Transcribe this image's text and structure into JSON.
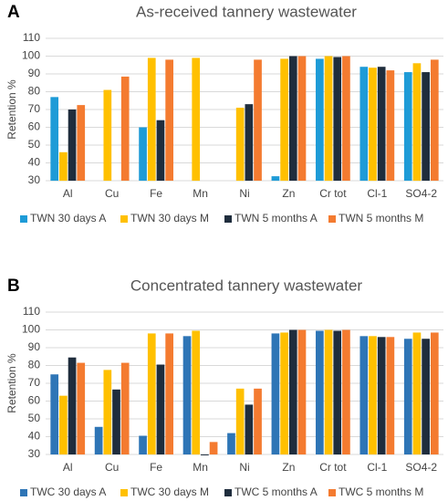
{
  "chart_data": [
    {
      "type": "bar",
      "label": "A",
      "title": "As-received tannery wastewater",
      "y_label": "Retention %",
      "categories": [
        "Al",
        "Cu",
        "Fe",
        "Mn",
        "Ni",
        "Zn",
        "Cr tot",
        "Cl-1",
        "SO4-2"
      ],
      "series": [
        {
          "name": "TWN 30 days A",
          "color": "#1e9bd7",
          "values": [
            77,
            null,
            60,
            null,
            null,
            32.5,
            98.5,
            94,
            91
          ]
        },
        {
          "name": "TWN 30 days M",
          "color": "#ffc000",
          "values": [
            46,
            81,
            99,
            99,
            71,
            98.5,
            100,
            93.5,
            96
          ]
        },
        {
          "name": "TWN 5 months A",
          "color": "#1f2d3d",
          "values": [
            70,
            null,
            64,
            null,
            73,
            100,
            99.5,
            94,
            91
          ]
        },
        {
          "name": "TWN 5 months M",
          "color": "#f47b30",
          "values": [
            72.5,
            88.5,
            98,
            null,
            98,
            100,
            100,
            92,
            98
          ]
        }
      ],
      "ylim": [
        30,
        110
      ],
      "yticks": [
        30,
        40,
        50,
        60,
        70,
        80,
        90,
        100,
        110
      ],
      "grid": true
    },
    {
      "type": "bar",
      "label": "B",
      "title": "Concentrated tannery wastewater",
      "y_label": "Retention %",
      "categories": [
        "Al",
        "Cu",
        "Fe",
        "Mn",
        "Ni",
        "Zn",
        "Cr tot",
        "Cl-1",
        "SO4-2"
      ],
      "series": [
        {
          "name": "TWC 30 days A",
          "color": "#2e75b6",
          "values": [
            75,
            45.5,
            40.5,
            96.5,
            42,
            98,
            99.5,
            96.5,
            95
          ]
        },
        {
          "name": "TWC 30 days M",
          "color": "#ffc000",
          "values": [
            63,
            77.5,
            98,
            99.5,
            67,
            98.5,
            100,
            96.5,
            98.5
          ]
        },
        {
          "name": "TWC 5 months A",
          "color": "#1f2d3d",
          "values": [
            84.5,
            66.5,
            80.5,
            29.5,
            58,
            100,
            99.5,
            96,
            95
          ]
        },
        {
          "name": "TWC 5 months M",
          "color": "#f47b30",
          "values": [
            81.5,
            81.5,
            98,
            37,
            67,
            100,
            100,
            96,
            98.5
          ]
        }
      ],
      "ylim": [
        30,
        110
      ],
      "yticks": [
        30,
        40,
        50,
        60,
        70,
        80,
        90,
        100,
        110
      ],
      "grid": true
    }
  ]
}
